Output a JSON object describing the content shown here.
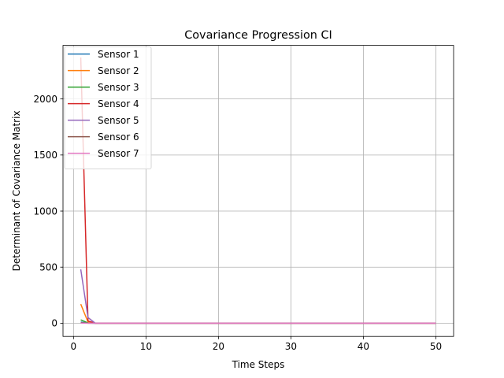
{
  "chart_data": {
    "type": "line",
    "title": "Covariance Progression CI",
    "xlabel": "Time Steps",
    "ylabel": "Determinant of Covariance Matrix",
    "xlim": [
      -1.45,
      52.45
    ],
    "ylim": [
      -118,
      2478
    ],
    "xticks": [
      0,
      10,
      20,
      30,
      40,
      50
    ],
    "yticks": [
      0,
      500,
      1000,
      1500,
      2000
    ],
    "grid": true,
    "legend_position": "upper-left",
    "series": [
      {
        "name": "Sensor 1",
        "color": "#1f77b4",
        "x": [
          1,
          2,
          3,
          50
        ],
        "y": [
          10,
          1,
          0,
          0
        ]
      },
      {
        "name": "Sensor 2",
        "color": "#ff7f0e",
        "x": [
          1,
          2,
          3,
          50
        ],
        "y": [
          170,
          10,
          0,
          0
        ]
      },
      {
        "name": "Sensor 3",
        "color": "#2ca02c",
        "x": [
          1,
          2,
          3,
          50
        ],
        "y": [
          30,
          2,
          0,
          0
        ]
      },
      {
        "name": "Sensor 4",
        "color": "#d62728",
        "x": [
          1,
          2,
          3,
          50
        ],
        "y": [
          2370,
          20,
          0,
          0
        ]
      },
      {
        "name": "Sensor 5",
        "color": "#9467bd",
        "x": [
          1,
          2,
          3,
          50
        ],
        "y": [
          480,
          50,
          0,
          0
        ]
      },
      {
        "name": "Sensor 6",
        "color": "#8c564b",
        "x": [
          1,
          2,
          3,
          50
        ],
        "y": [
          5,
          0,
          0,
          0
        ]
      },
      {
        "name": "Sensor 7",
        "color": "#e377c2",
        "x": [
          1,
          2,
          3,
          50
        ],
        "y": [
          0,
          0,
          0,
          0
        ]
      }
    ]
  }
}
